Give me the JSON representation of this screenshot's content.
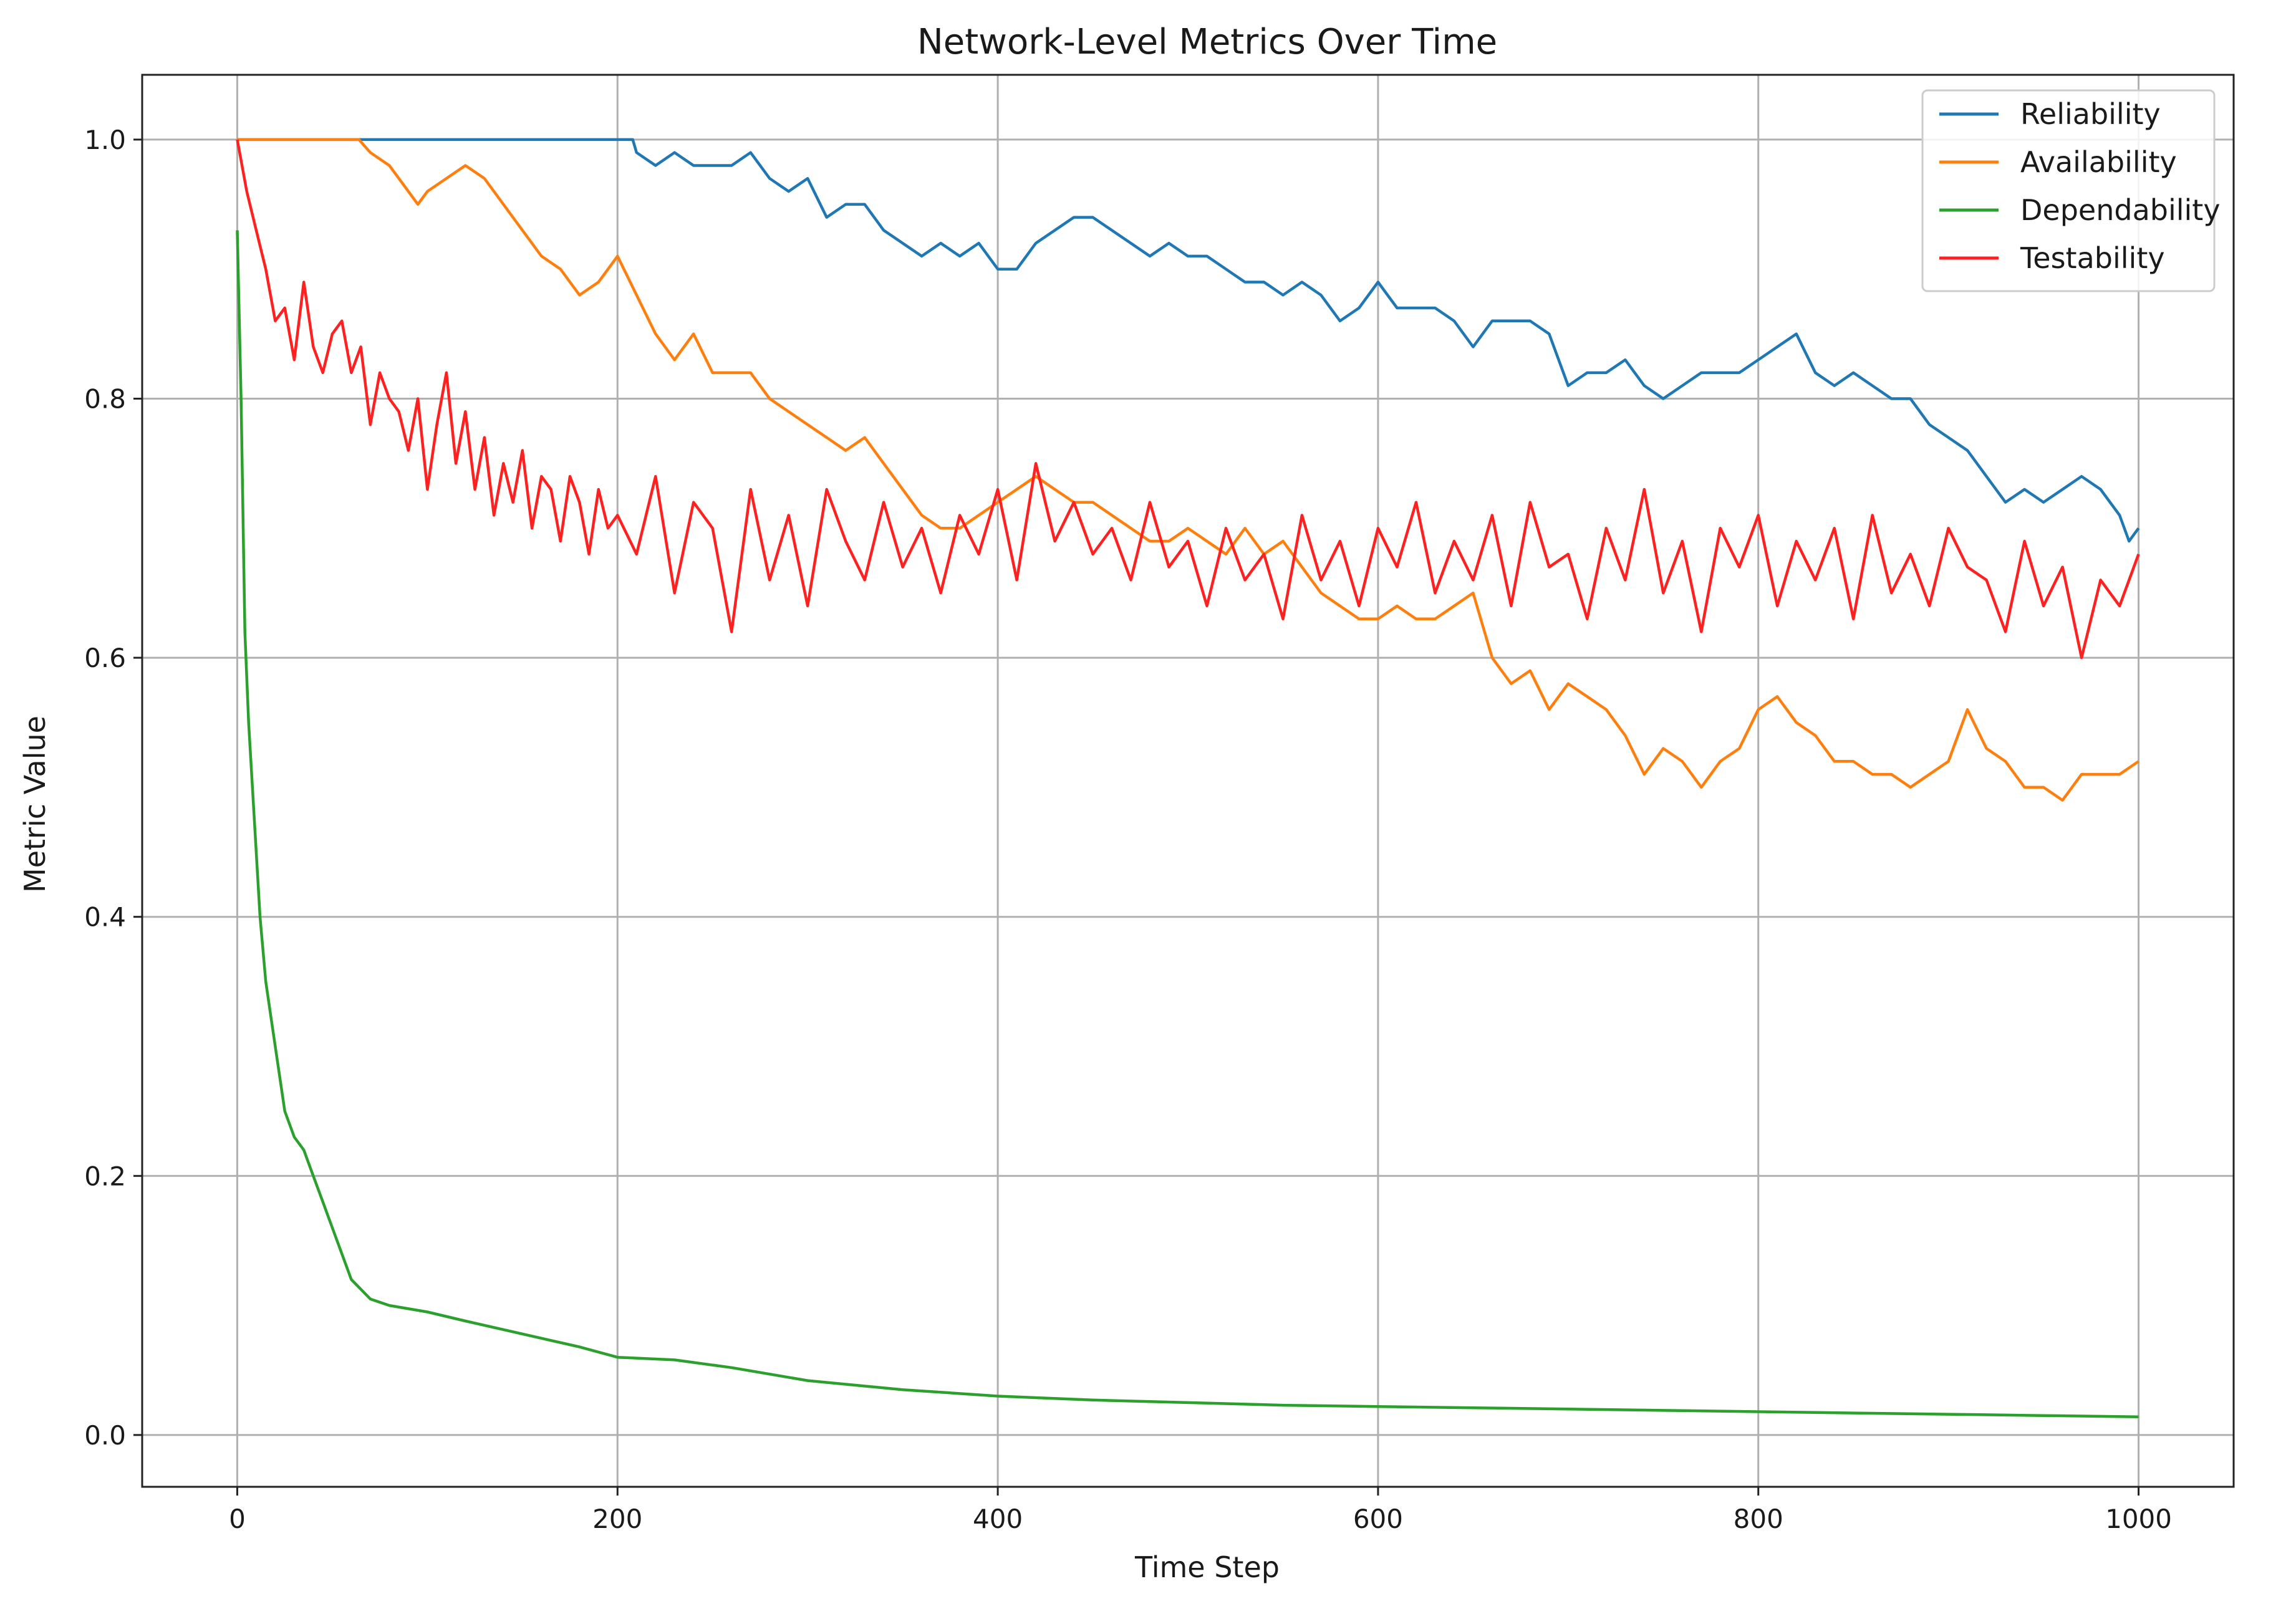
{
  "chart_data": {
    "type": "line",
    "title": "Network-Level Metrics Over Time",
    "xlabel": "Time Step",
    "ylabel": "Metric Value",
    "xlim": [
      -50,
      1050
    ],
    "ylim": [
      -0.04,
      1.05
    ],
    "xticks": [
      0,
      200,
      400,
      600,
      800,
      1000
    ],
    "yticks": [
      0.0,
      0.2,
      0.4,
      0.6,
      0.8,
      1.0
    ],
    "xtick_labels": [
      "0",
      "200",
      "400",
      "600",
      "800",
      "1000"
    ],
    "ytick_labels": [
      "0.0",
      "0.2",
      "0.4",
      "0.6",
      "0.8",
      "1.0"
    ],
    "grid": true,
    "legend_position": "top-right",
    "series": [
      {
        "name": "Reliability",
        "color": "#1f77b4",
        "x": [
          0,
          65,
          100,
          150,
          200,
          208,
          210,
          220,
          230,
          240,
          250,
          260,
          270,
          280,
          290,
          300,
          310,
          320,
          330,
          340,
          350,
          360,
          370,
          380,
          390,
          400,
          410,
          420,
          430,
          440,
          450,
          460,
          470,
          480,
          490,
          500,
          510,
          520,
          530,
          540,
          550,
          560,
          570,
          580,
          590,
          600,
          610,
          620,
          630,
          640,
          650,
          660,
          670,
          680,
          690,
          700,
          710,
          720,
          730,
          740,
          750,
          760,
          770,
          780,
          790,
          800,
          810,
          820,
          830,
          840,
          850,
          860,
          870,
          880,
          890,
          900,
          910,
          920,
          930,
          940,
          950,
          960,
          970,
          980,
          990,
          995,
          1000
        ],
        "values": [
          1.0,
          1.0,
          1.0,
          1.0,
          1.0,
          1.0,
          0.99,
          0.98,
          0.99,
          0.98,
          0.98,
          0.98,
          0.99,
          0.97,
          0.96,
          0.97,
          0.94,
          0.95,
          0.95,
          0.93,
          0.92,
          0.91,
          0.92,
          0.91,
          0.92,
          0.9,
          0.9,
          0.92,
          0.93,
          0.94,
          0.94,
          0.93,
          0.92,
          0.91,
          0.92,
          0.91,
          0.91,
          0.9,
          0.89,
          0.89,
          0.88,
          0.89,
          0.88,
          0.86,
          0.87,
          0.89,
          0.87,
          0.87,
          0.87,
          0.86,
          0.84,
          0.86,
          0.86,
          0.86,
          0.85,
          0.81,
          0.82,
          0.82,
          0.83,
          0.81,
          0.8,
          0.81,
          0.82,
          0.82,
          0.82,
          0.83,
          0.84,
          0.85,
          0.82,
          0.81,
          0.82,
          0.81,
          0.8,
          0.8,
          0.78,
          0.77,
          0.76,
          0.74,
          0.72,
          0.73,
          0.72,
          0.73,
          0.74,
          0.73,
          0.71,
          0.69,
          0.7
        ]
      },
      {
        "name": "Availability",
        "color": "#ff7f0e",
        "x": [
          0,
          20,
          40,
          64,
          70,
          80,
          90,
          95,
          100,
          110,
          120,
          130,
          140,
          150,
          160,
          170,
          180,
          190,
          200,
          210,
          220,
          230,
          240,
          250,
          260,
          270,
          280,
          290,
          300,
          310,
          320,
          330,
          340,
          350,
          360,
          370,
          380,
          390,
          400,
          410,
          420,
          430,
          440,
          450,
          460,
          470,
          480,
          490,
          500,
          510,
          520,
          530,
          540,
          550,
          560,
          570,
          580,
          590,
          600,
          610,
          620,
          630,
          640,
          650,
          660,
          670,
          680,
          690,
          700,
          710,
          720,
          730,
          740,
          750,
          760,
          770,
          780,
          790,
          800,
          810,
          820,
          830,
          840,
          850,
          860,
          870,
          880,
          890,
          900,
          910,
          920,
          930,
          940,
          950,
          960,
          970,
          980,
          990,
          1000
        ],
        "values": [
          1.0,
          1.0,
          1.0,
          1.0,
          0.99,
          0.98,
          0.96,
          0.95,
          0.96,
          0.97,
          0.98,
          0.97,
          0.95,
          0.93,
          0.91,
          0.9,
          0.88,
          0.89,
          0.91,
          0.88,
          0.85,
          0.83,
          0.85,
          0.82,
          0.82,
          0.82,
          0.8,
          0.79,
          0.78,
          0.77,
          0.76,
          0.77,
          0.75,
          0.73,
          0.71,
          0.7,
          0.7,
          0.71,
          0.72,
          0.73,
          0.74,
          0.73,
          0.72,
          0.72,
          0.71,
          0.7,
          0.69,
          0.69,
          0.7,
          0.69,
          0.68,
          0.7,
          0.68,
          0.69,
          0.67,
          0.65,
          0.64,
          0.63,
          0.63,
          0.64,
          0.63,
          0.63,
          0.64,
          0.65,
          0.6,
          0.58,
          0.59,
          0.56,
          0.58,
          0.57,
          0.56,
          0.54,
          0.51,
          0.53,
          0.52,
          0.5,
          0.52,
          0.53,
          0.56,
          0.57,
          0.55,
          0.54,
          0.52,
          0.52,
          0.51,
          0.51,
          0.5,
          0.51,
          0.52,
          0.56,
          0.53,
          0.52,
          0.5,
          0.5,
          0.49,
          0.51,
          0.51,
          0.51,
          0.52
        ]
      },
      {
        "name": "Dependability",
        "color": "#2ca02c",
        "x": [
          0,
          2,
          4,
          6,
          8,
          10,
          12,
          15,
          18,
          20,
          25,
          30,
          35,
          40,
          45,
          50,
          60,
          70,
          80,
          100,
          120,
          150,
          180,
          200,
          230,
          260,
          300,
          350,
          400,
          450,
          500,
          550,
          600,
          650,
          700,
          750,
          800,
          850,
          900,
          950,
          1000
        ],
        "values": [
          0.93,
          0.8,
          0.62,
          0.55,
          0.5,
          0.45,
          0.4,
          0.35,
          0.32,
          0.3,
          0.25,
          0.23,
          0.22,
          0.2,
          0.18,
          0.16,
          0.12,
          0.105,
          0.1,
          0.095,
          0.088,
          0.078,
          0.068,
          0.06,
          0.058,
          0.052,
          0.042,
          0.035,
          0.03,
          0.027,
          0.025,
          0.023,
          0.022,
          0.021,
          0.02,
          0.019,
          0.018,
          0.017,
          0.016,
          0.015,
          0.014
        ]
      },
      {
        "name": "Testability",
        "color": "#ff2020",
        "x": [
          0,
          5,
          10,
          15,
          20,
          25,
          30,
          35,
          40,
          45,
          50,
          55,
          60,
          65,
          70,
          75,
          80,
          85,
          90,
          95,
          100,
          105,
          110,
          115,
          120,
          125,
          130,
          135,
          140,
          145,
          150,
          155,
          160,
          165,
          170,
          175,
          180,
          185,
          190,
          195,
          200,
          210,
          220,
          230,
          240,
          250,
          260,
          270,
          280,
          290,
          300,
          310,
          320,
          330,
          340,
          350,
          360,
          370,
          380,
          390,
          400,
          410,
          420,
          430,
          440,
          450,
          460,
          470,
          480,
          490,
          500,
          510,
          520,
          530,
          540,
          550,
          560,
          570,
          580,
          590,
          600,
          610,
          620,
          630,
          640,
          650,
          660,
          670,
          680,
          690,
          700,
          710,
          720,
          730,
          740,
          750,
          760,
          770,
          780,
          790,
          800,
          810,
          820,
          830,
          840,
          850,
          860,
          870,
          880,
          890,
          900,
          910,
          920,
          930,
          940,
          950,
          960,
          970,
          980,
          990,
          1000
        ],
        "values": [
          1.0,
          0.96,
          0.93,
          0.9,
          0.86,
          0.87,
          0.83,
          0.89,
          0.84,
          0.82,
          0.85,
          0.86,
          0.82,
          0.84,
          0.78,
          0.82,
          0.8,
          0.79,
          0.76,
          0.8,
          0.73,
          0.78,
          0.82,
          0.75,
          0.79,
          0.73,
          0.77,
          0.71,
          0.75,
          0.72,
          0.76,
          0.7,
          0.74,
          0.73,
          0.69,
          0.74,
          0.72,
          0.68,
          0.73,
          0.7,
          0.71,
          0.68,
          0.74,
          0.65,
          0.72,
          0.7,
          0.62,
          0.73,
          0.66,
          0.71,
          0.64,
          0.73,
          0.69,
          0.66,
          0.72,
          0.67,
          0.7,
          0.65,
          0.71,
          0.68,
          0.73,
          0.66,
          0.75,
          0.69,
          0.72,
          0.68,
          0.7,
          0.66,
          0.72,
          0.67,
          0.69,
          0.64,
          0.7,
          0.66,
          0.68,
          0.63,
          0.71,
          0.66,
          0.69,
          0.64,
          0.7,
          0.67,
          0.72,
          0.65,
          0.69,
          0.66,
          0.71,
          0.64,
          0.72,
          0.67,
          0.68,
          0.63,
          0.7,
          0.66,
          0.73,
          0.65,
          0.69,
          0.62,
          0.7,
          0.67,
          0.71,
          0.64,
          0.69,
          0.66,
          0.7,
          0.63,
          0.71,
          0.65,
          0.68,
          0.64,
          0.7,
          0.67,
          0.66,
          0.62,
          0.69,
          0.64,
          0.67,
          0.6,
          0.66,
          0.64,
          0.68
        ]
      }
    ]
  }
}
